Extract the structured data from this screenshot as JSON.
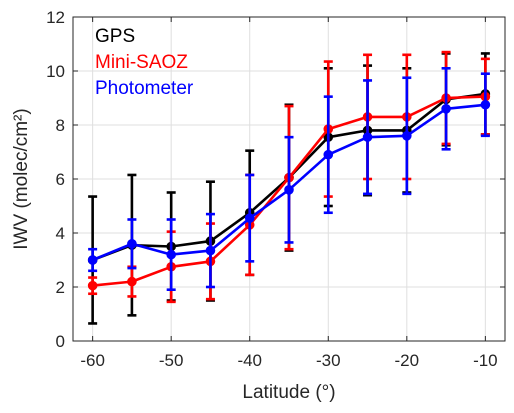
{
  "chart_data": {
    "type": "line",
    "title": "",
    "xlabel": "Latitude (°)",
    "ylabel": "IWV (molec/cm²)",
    "xlim": [
      -62.5,
      -7.5
    ],
    "ylim": [
      0,
      12
    ],
    "xticks": [
      -60,
      -50,
      -40,
      -30,
      -20,
      -10
    ],
    "xtick_labels": [
      "-60",
      "-50",
      "-40",
      "-30",
      "-20",
      "-10"
    ],
    "yticks": [
      0,
      2,
      4,
      6,
      8,
      10,
      12
    ],
    "ytick_labels": [
      "0",
      "2",
      "4",
      "6",
      "8",
      "10",
      "12"
    ],
    "grid": true,
    "legend_position": "top-left",
    "x": [
      -60,
      -55,
      -50,
      -45,
      -40,
      -35,
      -30,
      -25,
      -20,
      -15,
      -10
    ],
    "series": [
      {
        "name": "GPS",
        "color": "#000000",
        "values": [
          3.0,
          3.55,
          3.5,
          3.7,
          4.75,
          6.05,
          7.55,
          7.8,
          7.8,
          8.95,
          9.15
        ],
        "error": [
          2.35,
          2.6,
          2.0,
          2.2,
          2.3,
          2.7,
          2.55,
          2.4,
          2.3,
          1.7,
          1.5
        ]
      },
      {
        "name": "Mini-SAOZ",
        "color": "#ff0000",
        "values": [
          2.05,
          2.2,
          2.75,
          2.95,
          4.3,
          6.05,
          7.85,
          8.3,
          8.3,
          9.0,
          9.05
        ],
        "error": [
          0.3,
          0.55,
          1.3,
          1.4,
          1.85,
          2.65,
          2.5,
          2.3,
          2.3,
          1.7,
          1.4
        ]
      },
      {
        "name": "Photometer",
        "color": "#0000ff",
        "values": [
          3.0,
          3.6,
          3.2,
          3.35,
          4.55,
          5.6,
          6.9,
          7.55,
          7.6,
          8.6,
          8.75
        ],
        "error": [
          0.4,
          0.9,
          1.3,
          1.35,
          1.6,
          1.95,
          2.15,
          2.1,
          2.15,
          1.5,
          1.15
        ]
      }
    ]
  }
}
